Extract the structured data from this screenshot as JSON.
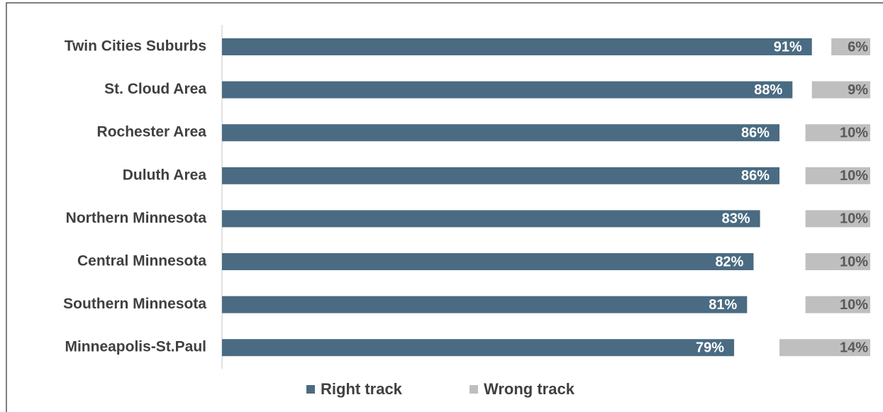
{
  "chart_data": {
    "type": "bar",
    "orientation": "horizontal",
    "categories": [
      "Twin Cities Suburbs",
      "St. Cloud Area",
      "Rochester Area",
      "Duluth Area",
      "Northern Minnesota",
      "Central Minnesota",
      "Southern Minnesota",
      "Minneapolis-St.Paul"
    ],
    "series": [
      {
        "name": "Right track",
        "color": "#4a6b82",
        "values": [
          91,
          88,
          86,
          86,
          83,
          82,
          81,
          79
        ],
        "value_labels": [
          "91%",
          "88%",
          "86%",
          "86%",
          "83%",
          "82%",
          "81%",
          "79%"
        ]
      },
      {
        "name": "Wrong track",
        "color": "#bfbfbf",
        "values": [
          6,
          9,
          10,
          10,
          10,
          10,
          10,
          14
        ],
        "value_labels": [
          "6%",
          "9%",
          "10%",
          "10%",
          "10%",
          "10%",
          "10%",
          "14%"
        ]
      }
    ],
    "xlim": [
      0,
      100
    ],
    "legend": "bottom"
  }
}
